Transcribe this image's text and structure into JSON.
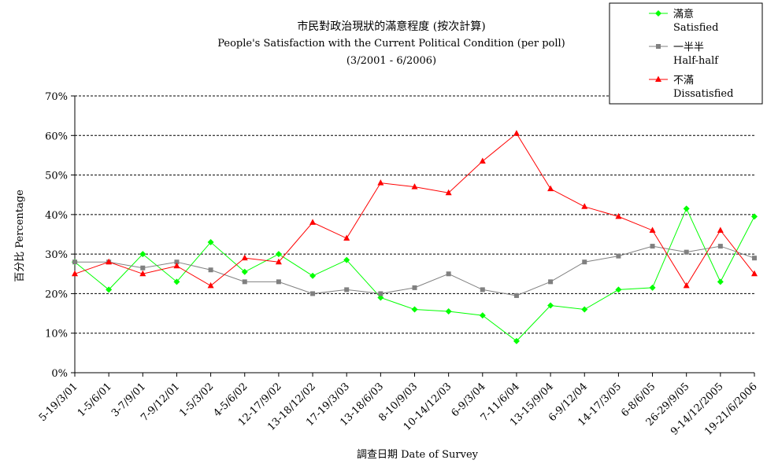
{
  "chart_data": {
    "type": "line",
    "title": "市民對政治現狀的滿意程度 (按次計算)",
    "subtitle": "People's Satisfaction with the Current Political Condition (per poll)",
    "period": "(3/2001 - 6/2006)",
    "xlabel": "調查日期 Date of Survey",
    "ylabel": "百分比 Percentage",
    "ylim": [
      0,
      70
    ],
    "yticks": [
      "0%",
      "10%",
      "20%",
      "30%",
      "40%",
      "50%",
      "60%",
      "70%"
    ],
    "grid": true,
    "legend_position": "top-right",
    "categories": [
      "5-19/3/01",
      "1-5/6/01",
      "3-7/9/01",
      "7-9/12/01",
      "1-5/3/02",
      "4-5/6/02",
      "12-17/9/02",
      "13-18/12/02",
      "17-19/3/03",
      "13-18/6/03",
      "8-10/9/03",
      "10-14/12/03",
      "6-9/3/04",
      "7-11/6/04",
      "13-15/9/04",
      "6-9/12/04",
      "14-17/3/05",
      "6-8/6/05",
      "26-29/9/05",
      "9-14/12/2005",
      "19-21/6/2006"
    ],
    "series": [
      {
        "name_zh": "滿意",
        "name_en": "Satisfied",
        "color": "#00ff00",
        "marker": "diamond",
        "values": [
          28,
          21,
          30,
          23,
          33,
          25.5,
          30,
          24.5,
          28.5,
          19,
          16,
          15.5,
          14.5,
          8,
          17,
          16,
          21,
          21.5,
          41.5,
          23,
          39.5
        ]
      },
      {
        "name_zh": "一半半",
        "name_en": "Half-half",
        "color": "#808080",
        "marker": "square",
        "values": [
          28,
          28,
          26.5,
          28,
          26,
          23,
          23,
          20,
          21,
          20,
          21.5,
          25,
          21,
          19.5,
          23,
          28,
          29.5,
          32,
          30.5,
          32,
          29
        ]
      },
      {
        "name_zh": "不滿",
        "name_en": "Dissatisfied",
        "color": "#ff0000",
        "marker": "triangle",
        "values": [
          25,
          28,
          25,
          27,
          22,
          29,
          28,
          38,
          34,
          48,
          47,
          45.5,
          53.5,
          60.5,
          46.5,
          42,
          39.5,
          36,
          22,
          36,
          25
        ]
      }
    ]
  }
}
